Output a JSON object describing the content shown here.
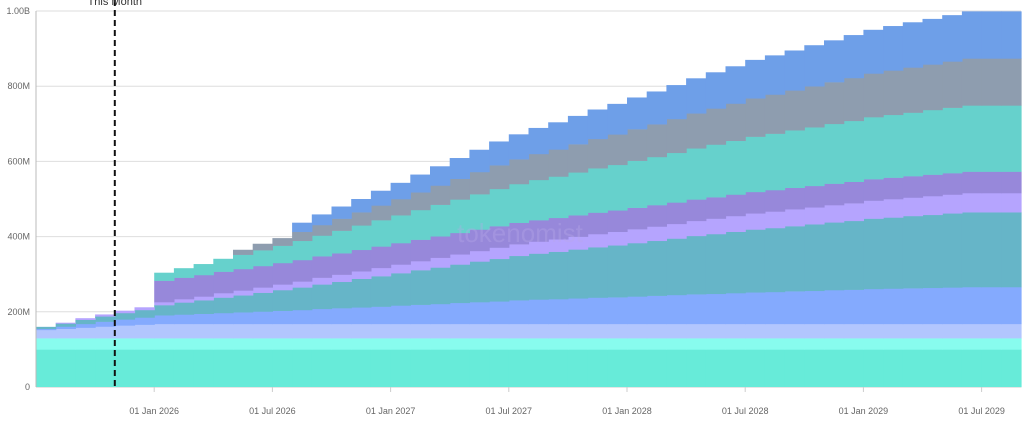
{
  "chart_data": {
    "type": "area",
    "step": "monthly",
    "stacked": true,
    "title": "",
    "xlabel": "",
    "ylabel": "",
    "ylim": [
      0,
      1000000000
    ],
    "grid": "horizontal",
    "watermark": "tokenomist",
    "annotation": {
      "label": "This Month",
      "x": "Nov 2025",
      "style": "dashed-vertical-line"
    },
    "y_ticks": [
      {
        "value": 0,
        "label": "0"
      },
      {
        "value": 200000000,
        "label": "200M"
      },
      {
        "value": 400000000,
        "label": "400M"
      },
      {
        "value": 600000000,
        "label": "600M"
      },
      {
        "value": 800000000,
        "label": "800M"
      },
      {
        "value": 1000000000,
        "label": "1.00B"
      }
    ],
    "x_ticks": [
      {
        "x": "Jan 2026",
        "label": "01 Jan 2026"
      },
      {
        "x": "Jul 2026",
        "label": "01 Jul 2026"
      },
      {
        "x": "Jan 2027",
        "label": "01 Jan 2027"
      },
      {
        "x": "Jul 2027",
        "label": "01 Jul 2027"
      },
      {
        "x": "Jan 2028",
        "label": "01 Jan 2028"
      },
      {
        "x": "Jul 2028",
        "label": "01 Jul 2028"
      },
      {
        "x": "Jan 2029",
        "label": "01 Jan 2029"
      },
      {
        "x": "Jul 2029",
        "label": "01 Jul 2029"
      }
    ],
    "value_unit": "millions of tokens",
    "x": [
      "Jul 2025",
      "Aug 2025",
      "Sep 2025",
      "Oct 2025",
      "Nov 2025",
      "Dec 2025",
      "Jan 2026",
      "Feb 2026",
      "Mar 2026",
      "Apr 2026",
      "May 2026",
      "Jun 2026",
      "Jul 2026",
      "Aug 2026",
      "Sep 2026",
      "Oct 2026",
      "Nov 2026",
      "Dec 2026",
      "Jan 2027",
      "Feb 2027",
      "Mar 2027",
      "Apr 2027",
      "May 2027",
      "Jun 2027",
      "Jul 2027",
      "Aug 2027",
      "Sep 2027",
      "Oct 2027",
      "Nov 2027",
      "Dec 2027",
      "Jan 2028",
      "Feb 2028",
      "Mar 2028",
      "Apr 2028",
      "May 2028",
      "Jun 2028",
      "Jul 2028",
      "Aug 2028",
      "Sep 2028",
      "Oct 2028",
      "Nov 2028",
      "Dec 2028",
      "Jan 2029",
      "Feb 2029",
      "Mar 2029",
      "Apr 2029",
      "May 2029",
      "Jun 2029",
      "Jul 2029",
      "Aug 2029"
    ],
    "series": [
      {
        "color": "#67EBD9",
        "values": [
          100,
          100,
          100,
          100,
          100,
          100,
          100,
          100,
          100,
          100,
          100,
          100,
          100,
          100,
          100,
          100,
          100,
          100,
          100,
          100,
          100,
          100,
          100,
          100,
          100,
          100,
          100,
          100,
          100,
          100,
          100,
          100,
          100,
          100,
          100,
          100,
          100,
          100,
          100,
          100,
          100,
          100,
          100,
          100,
          100,
          100,
          100,
          100,
          100,
          100
        ]
      },
      {
        "color": "#88FCEE",
        "values": [
          30,
          30,
          30,
          30,
          30,
          30,
          30,
          30,
          30,
          30,
          30,
          30,
          30,
          30,
          30,
          30,
          30,
          30,
          30,
          30,
          30,
          30,
          30,
          30,
          30,
          30,
          30,
          30,
          30,
          30,
          30,
          30,
          30,
          30,
          30,
          30,
          30,
          30,
          30,
          30,
          30,
          30,
          30,
          30,
          30,
          30,
          30,
          30,
          30,
          30
        ]
      },
      {
        "color": "#B2C6FE",
        "values": [
          22,
          25,
          28,
          31,
          34,
          36,
          38,
          38,
          38,
          38,
          38,
          38,
          38,
          38,
          38,
          38,
          38,
          38,
          38,
          38,
          38,
          38,
          38,
          38,
          38,
          38,
          38,
          38,
          38,
          38,
          38,
          38,
          38,
          38,
          38,
          38,
          38,
          38,
          38,
          38,
          38,
          38,
          38,
          38,
          38,
          38,
          38,
          38,
          38,
          38
        ]
      },
      {
        "color": "#84AAFE",
        "values": [
          3,
          6,
          10,
          13,
          16,
          19,
          23,
          25,
          27,
          29,
          31,
          33,
          35,
          37,
          40,
          42,
          44,
          46,
          49,
          51,
          53,
          56,
          58,
          60,
          63,
          65,
          66,
          68,
          70,
          71,
          73,
          75,
          77,
          79,
          80,
          82,
          84,
          85,
          87,
          88,
          90,
          91,
          93,
          94,
          95,
          96,
          97,
          98,
          98,
          98
        ]
      },
      {
        "color": "#66B5C8",
        "values": [
          5,
          8,
          11,
          14,
          17,
          20,
          27,
          32,
          36,
          41,
          45,
          50,
          55,
          60,
          65,
          70,
          76,
          81,
          86,
          92,
          97,
          102,
          108,
          113,
          118,
          122,
          126,
          130,
          134,
          138,
          142,
          146,
          150,
          155,
          159,
          163,
          167,
          170,
          173,
          177,
          180,
          183,
          187,
          189,
          192,
          194,
          197,
          199,
          199,
          199
        ]
      },
      {
        "color": "#B5A4FE",
        "values": [
          0,
          2,
          4,
          5,
          6,
          7,
          8,
          9,
          10,
          12,
          13,
          14,
          15,
          16,
          18,
          19,
          20,
          22,
          23,
          24,
          26,
          27,
          28,
          30,
          31,
          32,
          33,
          34,
          35,
          36,
          37,
          38,
          39,
          40,
          41,
          42,
          43,
          44,
          45,
          45,
          46,
          47,
          48,
          49,
          49,
          50,
          50,
          51,
          51,
          51
        ]
      },
      {
        "color": "#9788DA",
        "values": [
          0,
          0,
          0,
          0,
          0,
          0,
          57,
          57,
          57,
          57,
          57,
          57,
          57,
          57,
          57,
          57,
          57,
          57,
          57,
          57,
          57,
          57,
          57,
          57,
          57,
          57,
          57,
          57,
          57,
          57,
          57,
          57,
          57,
          57,
          57,
          57,
          57,
          57,
          57,
          57,
          57,
          57,
          57,
          57,
          57,
          57,
          57,
          57,
          57,
          57
        ]
      },
      {
        "color": "#66D1CC",
        "values": [
          0,
          0,
          0,
          0,
          0,
          0,
          21,
          25,
          29,
          34,
          38,
          42,
          46,
          51,
          55,
          60,
          65,
          70,
          74,
          79,
          84,
          89,
          94,
          99,
          103,
          107,
          110,
          114,
          118,
          121,
          125,
          128,
          132,
          136,
          140,
          143,
          147,
          150,
          153,
          156,
          159,
          162,
          165,
          167,
          169,
          172,
          174,
          176,
          176,
          176
        ]
      },
      {
        "color": "#8E9DAF",
        "values": [
          0,
          0,
          0,
          0,
          0,
          0,
          0,
          0,
          0,
          0,
          13,
          17,
          20,
          24,
          28,
          32,
          35,
          39,
          43,
          47,
          51,
          55,
          59,
          63,
          66,
          69,
          72,
          75,
          78,
          81,
          84,
          87,
          90,
          93,
          96,
          99,
          102,
          104,
          106,
          109,
          111,
          114,
          116,
          118,
          120,
          121,
          123,
          125,
          125,
          125
        ]
      },
      {
        "color": "#6E9FE8",
        "values": [
          0,
          0,
          0,
          0,
          0,
          0,
          0,
          0,
          0,
          0,
          0,
          0,
          0,
          24,
          28,
          32,
          35,
          39,
          43,
          47,
          51,
          55,
          59,
          63,
          66,
          69,
          72,
          75,
          78,
          81,
          84,
          87,
          90,
          93,
          96,
          99,
          102,
          104,
          106,
          109,
          111,
          114,
          116,
          118,
          120,
          121,
          123,
          125,
          125,
          125
        ]
      }
    ]
  }
}
